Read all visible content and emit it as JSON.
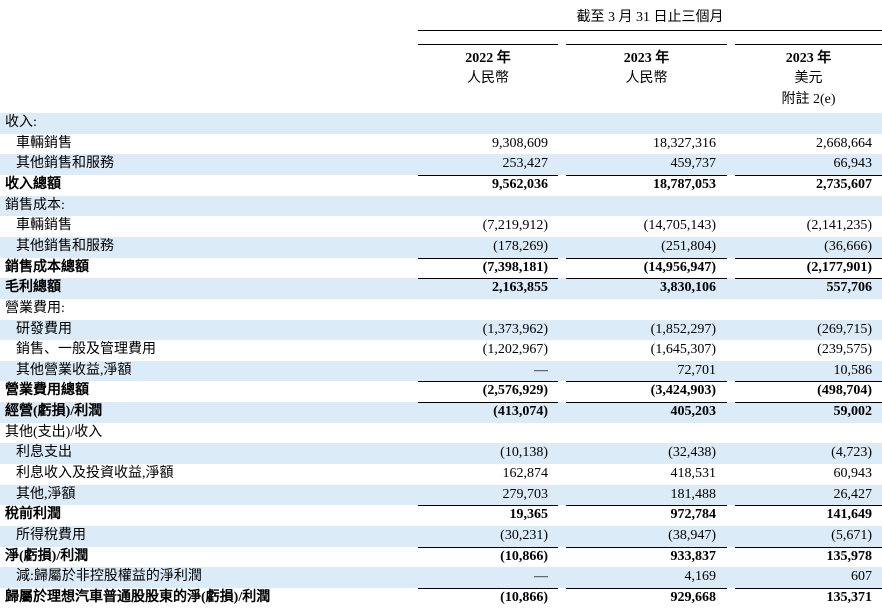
{
  "table": {
    "column_group": "截至 3 月 31 日止三個月",
    "columns": [
      {
        "year": "2022 年",
        "currency": "人民幣"
      },
      {
        "year": "2023 年",
        "currency": "人民幣"
      },
      {
        "year": "2023 年",
        "currency": "美元",
        "note": "附註 2(e)"
      }
    ],
    "rows": [
      {
        "label": "收入:",
        "level": 0
      },
      {
        "label": "車輛銷售",
        "level": 1,
        "values": [
          "9,308,609",
          "18,327,316",
          "2,668,664"
        ]
      },
      {
        "label": "其他銷售和服務",
        "level": 1,
        "values": [
          "253,427",
          "459,737",
          "66,943"
        ]
      },
      {
        "label": "收入總額",
        "level": 0,
        "bold": true,
        "values": [
          "9,562,036",
          "18,787,053",
          "2,735,607"
        ]
      },
      {
        "label": "銷售成本:",
        "level": 0
      },
      {
        "label": "車輛銷售",
        "level": 1,
        "values": [
          "(7,219,912)",
          "(14,705,143)",
          "(2,141,235)"
        ]
      },
      {
        "label": "其他銷售和服務",
        "level": 1,
        "values": [
          "(178,269)",
          "(251,804)",
          "(36,666)"
        ]
      },
      {
        "label": "銷售成本總額",
        "level": 0,
        "bold": true,
        "values": [
          "(7,398,181)",
          "(14,956,947)",
          "(2,177,901)"
        ]
      },
      {
        "label": "毛利總額",
        "level": 0,
        "bold": true,
        "values": [
          "2,163,855",
          "3,830,106",
          "557,706"
        ]
      },
      {
        "label": "營業費用:",
        "level": 0
      },
      {
        "label": "研發費用",
        "level": 1,
        "values": [
          "(1,373,962)",
          "(1,852,297)",
          "(269,715)"
        ]
      },
      {
        "label": "銷售、一般及管理費用",
        "level": 1,
        "values": [
          "(1,202,967)",
          "(1,645,307)",
          "(239,575)"
        ]
      },
      {
        "label": "其他營業收益,淨額",
        "level": 1,
        "values": [
          "—",
          "72,701",
          "10,586"
        ]
      },
      {
        "label": "營業費用總額",
        "level": 0,
        "bold": true,
        "values": [
          "(2,576,929)",
          "(3,424,903)",
          "(498,704)"
        ]
      },
      {
        "label": "經營(虧損)/利潤",
        "level": 0,
        "bold": true,
        "values": [
          "(413,074)",
          "405,203",
          "59,002"
        ]
      },
      {
        "label": "其他(支出)/收入",
        "level": 0
      },
      {
        "label": "利息支出",
        "level": 1,
        "values": [
          "(10,138)",
          "(32,438)",
          "(4,723)"
        ]
      },
      {
        "label": "利息收入及投資收益,淨額",
        "level": 1,
        "values": [
          "162,874",
          "418,531",
          "60,943"
        ]
      },
      {
        "label": "其他,淨額",
        "level": 1,
        "values": [
          "279,703",
          "181,488",
          "26,427"
        ]
      },
      {
        "label": "稅前利潤",
        "level": 0,
        "bold": true,
        "values": [
          "19,365",
          "972,784",
          "141,649"
        ]
      },
      {
        "label": "所得稅費用",
        "level": 1,
        "values": [
          "(30,231)",
          "(38,947)",
          "(5,671)"
        ]
      },
      {
        "label": "淨(虧損)/利潤",
        "level": 0,
        "bold": true,
        "values": [
          "(10,866)",
          "933,837",
          "135,978"
        ]
      },
      {
        "label": "減:歸屬於非控股權益的淨利潤",
        "level": 1,
        "values": [
          "—",
          "4,169",
          "607"
        ]
      },
      {
        "label": "歸屬於理想汽車普通股股東的淨(虧損)/利潤",
        "level": 0,
        "bold": true,
        "values": [
          "(10,866)",
          "929,668",
          "135,371"
        ]
      }
    ]
  }
}
